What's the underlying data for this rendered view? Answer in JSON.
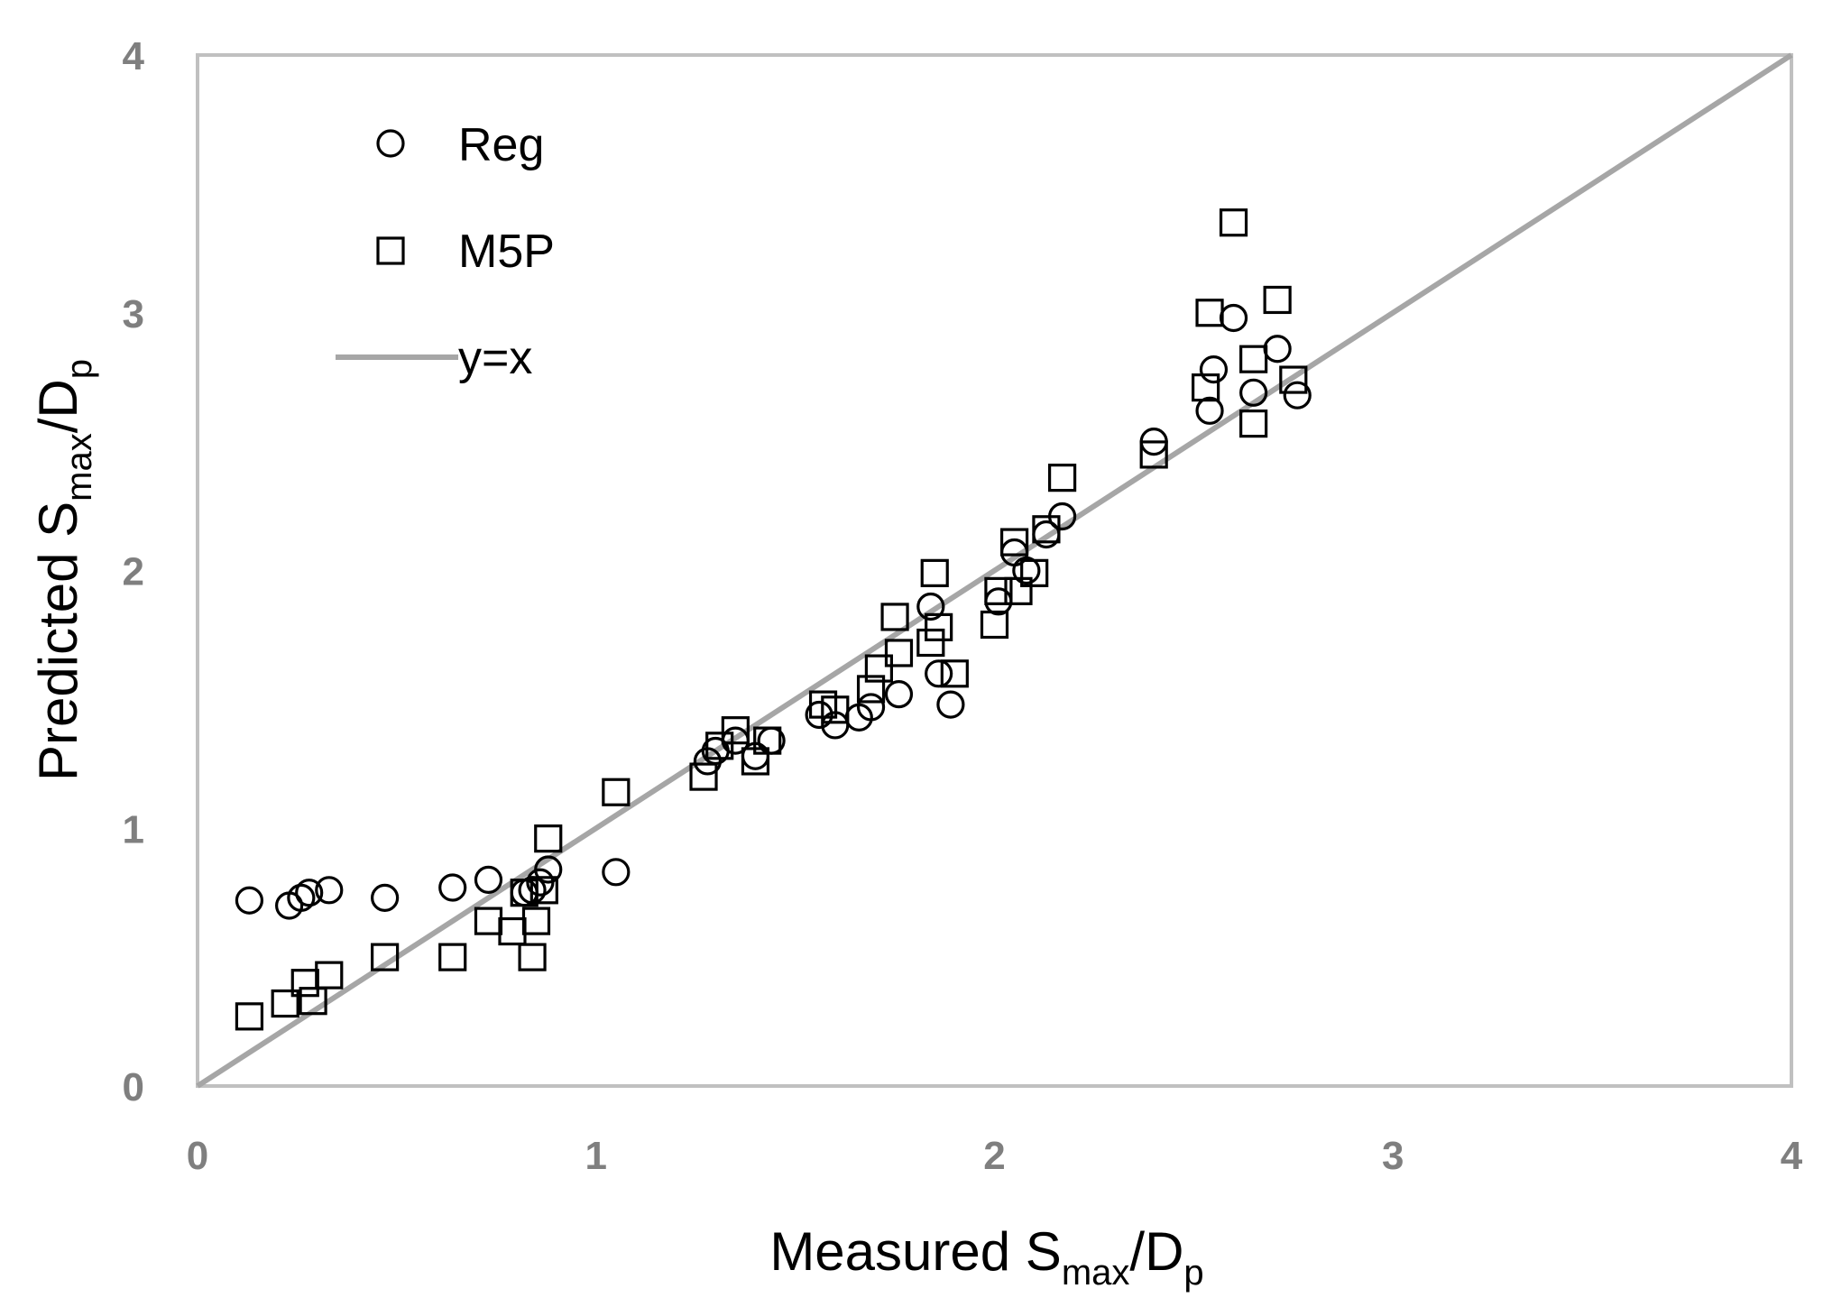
{
  "chart_data": {
    "type": "scatter",
    "xlabel": {
      "main": "Measured S",
      "sub": "max",
      "tail": "/D",
      "sub2": "p"
    },
    "ylabel": {
      "main": "Predicted S",
      "sub": "max",
      "tail": "/D",
      "sub2": "p"
    },
    "xlim": [
      0,
      4
    ],
    "ylim": [
      0,
      4
    ],
    "xticks": [
      "0",
      "1",
      "2",
      "3",
      "4"
    ],
    "yticks": [
      "0",
      "1",
      "2",
      "3",
      "4"
    ],
    "grid": false,
    "legend_position": "top-left",
    "series": [
      {
        "name": "Reg",
        "marker": "circle",
        "points": [
          [
            0.13,
            0.72
          ],
          [
            0.23,
            0.7
          ],
          [
            0.26,
            0.73
          ],
          [
            0.28,
            0.75
          ],
          [
            0.33,
            0.76
          ],
          [
            0.47,
            0.73
          ],
          [
            0.64,
            0.77
          ],
          [
            0.73,
            0.8
          ],
          [
            0.82,
            0.75
          ],
          [
            0.84,
            0.76
          ],
          [
            0.86,
            0.79
          ],
          [
            0.88,
            0.84
          ],
          [
            1.05,
            0.83
          ],
          [
            1.28,
            1.26
          ],
          [
            1.3,
            1.3
          ],
          [
            1.35,
            1.34
          ],
          [
            1.4,
            1.28
          ],
          [
            1.44,
            1.34
          ],
          [
            1.56,
            1.44
          ],
          [
            1.6,
            1.4
          ],
          [
            1.66,
            1.43
          ],
          [
            1.69,
            1.47
          ],
          [
            1.76,
            1.52
          ],
          [
            1.84,
            1.86
          ],
          [
            1.86,
            1.6
          ],
          [
            1.89,
            1.48
          ],
          [
            2.01,
            1.88
          ],
          [
            2.05,
            2.07
          ],
          [
            2.08,
            2.0
          ],
          [
            2.13,
            2.14
          ],
          [
            2.17,
            2.21
          ],
          [
            2.4,
            2.5
          ],
          [
            2.54,
            2.62
          ],
          [
            2.55,
            2.78
          ],
          [
            2.6,
            2.98
          ],
          [
            2.65,
            2.69
          ],
          [
            2.71,
            2.86
          ],
          [
            2.76,
            2.68
          ]
        ]
      },
      {
        "name": "M5P",
        "marker": "square",
        "points": [
          [
            0.13,
            0.27
          ],
          [
            0.22,
            0.32
          ],
          [
            0.27,
            0.4
          ],
          [
            0.29,
            0.33
          ],
          [
            0.33,
            0.43
          ],
          [
            0.47,
            0.5
          ],
          [
            0.64,
            0.5
          ],
          [
            0.73,
            0.64
          ],
          [
            0.79,
            0.6
          ],
          [
            0.82,
            0.75
          ],
          [
            0.84,
            0.5
          ],
          [
            0.85,
            0.64
          ],
          [
            0.87,
            0.76
          ],
          [
            0.88,
            0.96
          ],
          [
            1.05,
            1.14
          ],
          [
            1.27,
            1.2
          ],
          [
            1.31,
            1.32
          ],
          [
            1.35,
            1.38
          ],
          [
            1.4,
            1.26
          ],
          [
            1.43,
            1.34
          ],
          [
            1.57,
            1.48
          ],
          [
            1.6,
            1.46
          ],
          [
            1.69,
            1.54
          ],
          [
            1.71,
            1.62
          ],
          [
            1.75,
            1.82
          ],
          [
            1.76,
            1.68
          ],
          [
            1.84,
            1.72
          ],
          [
            1.85,
            1.99
          ],
          [
            1.86,
            1.78
          ],
          [
            1.9,
            1.6
          ],
          [
            2.0,
            1.79
          ],
          [
            2.01,
            1.92
          ],
          [
            2.05,
            2.11
          ],
          [
            2.06,
            1.92
          ],
          [
            2.1,
            1.99
          ],
          [
            2.13,
            2.16
          ],
          [
            2.17,
            2.36
          ],
          [
            2.4,
            2.45
          ],
          [
            2.53,
            2.71
          ],
          [
            2.54,
            3.0
          ],
          [
            2.6,
            3.35
          ],
          [
            2.65,
            2.82
          ],
          [
            2.65,
            2.57
          ],
          [
            2.71,
            3.05
          ],
          [
            2.75,
            2.74
          ]
        ]
      },
      {
        "name": "y=x",
        "marker": "line",
        "points": [
          [
            0,
            0
          ],
          [
            4,
            4
          ]
        ]
      }
    ]
  }
}
